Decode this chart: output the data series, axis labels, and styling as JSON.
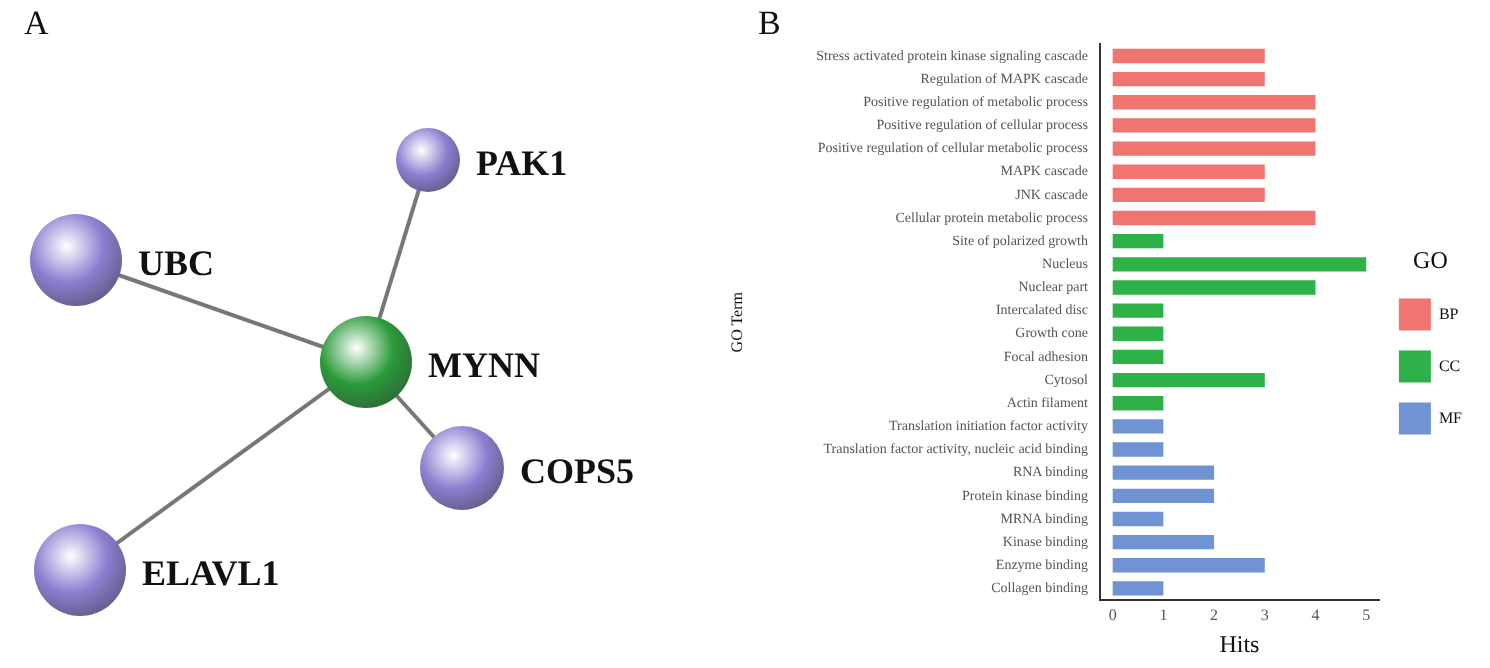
{
  "chart_data": [
    {
      "type": "other",
      "title": "A",
      "annotations": [
        "PAK1",
        "UBC",
        "MYNN",
        "COPS5",
        "ELAVL1"
      ]
    },
    {
      "type": "bar",
      "title": "B",
      "orientation": "horizontal",
      "ylabel": "GO Term",
      "xlabel": "Hits",
      "legend_title": "GO",
      "legend": "right",
      "grid": false,
      "xlim": [
        -0.25,
        5.25
      ],
      "xticks": [
        0,
        1,
        2,
        3,
        4,
        5
      ],
      "categories": [
        "Stress activated protein kinase signaling cascade",
        "Regulation of MAPK cascade",
        "Positive regulation of metabolic process",
        "Positive regulation of cellular process",
        "Positive regulation of cellular metabolic process",
        "MAPK cascade",
        "JNK cascade",
        "Cellular protein metabolic process",
        "Site of polarized growth",
        "Nucleus",
        "Nuclear part",
        "Intercalated disc",
        "Growth cone",
        "Focal adhesion",
        "Cytosol",
        "Actin filament",
        "Translation initiation factor activity",
        "Translation factor activity, nucleic acid binding",
        "RNA binding",
        "Protein kinase binding",
        "MRNA binding",
        "Kinase binding",
        "Enzyme binding",
        "Collagen binding"
      ],
      "series": [
        {
          "name": "BP",
          "color": "#f07470",
          "values": [
            3,
            3,
            4,
            4,
            4,
            3,
            3,
            4,
            null,
            null,
            null,
            null,
            null,
            null,
            null,
            null,
            null,
            null,
            null,
            null,
            null,
            null,
            null,
            null
          ]
        },
        {
          "name": "CC",
          "color": "#2fb14a",
          "values": [
            null,
            null,
            null,
            null,
            null,
            null,
            null,
            null,
            1,
            5,
            4,
            1,
            1,
            1,
            3,
            1,
            null,
            null,
            null,
            null,
            null,
            null,
            null,
            null
          ]
        },
        {
          "name": "MF",
          "color": "#6f93d3",
          "values": [
            null,
            null,
            null,
            null,
            null,
            null,
            null,
            null,
            null,
            null,
            null,
            null,
            null,
            null,
            null,
            null,
            1,
            1,
            2,
            2,
            1,
            2,
            3,
            1
          ]
        }
      ]
    }
  ]
}
